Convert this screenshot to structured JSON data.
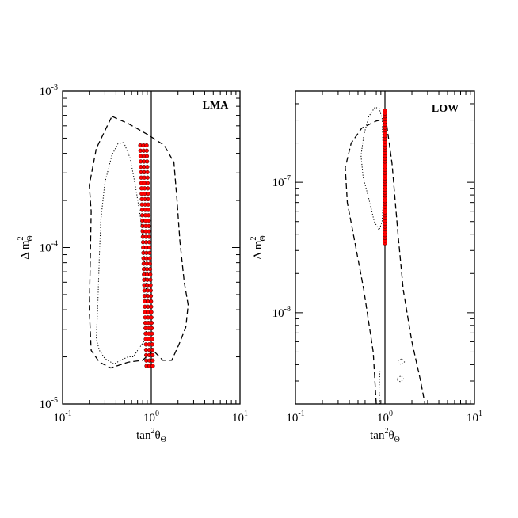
{
  "chart_data": [
    {
      "type": "scatter",
      "panel": "LMA",
      "label": "LMA",
      "xlabel": {
        "base": "tan",
        "sup": "2",
        "main": "θ",
        "sub": "Θ"
      },
      "ylabel": {
        "main": "Δ m",
        "sup": "2",
        "sub": "Θ"
      },
      "xscale": "log",
      "yscale": "log",
      "xlim": [
        0.1,
        10
      ],
      "ylim": [
        1e-05,
        0.001
      ],
      "xticks": [
        {
          "value": 0.1,
          "base": "10",
          "exp": "-1"
        },
        {
          "value": 1,
          "base": "10",
          "exp": "0"
        },
        {
          "value": 10,
          "base": "10",
          "exp": "1"
        }
      ],
      "yticks": [
        {
          "value": 1e-05,
          "base": "10",
          "exp": "-5"
        },
        {
          "value": 0.0001,
          "base": "10",
          "exp": "-4"
        },
        {
          "value": 0.001,
          "base": "10",
          "exp": "-3"
        }
      ],
      "vline": 1,
      "contours": [
        {
          "style": "dashed",
          "points": [
            [
              0.36,
              0.00069
            ],
            [
              0.55,
              0.00062
            ],
            [
              0.9,
              0.00053
            ],
            [
              1.4,
              0.00045
            ],
            [
              1.8,
              0.00035
            ],
            [
              1.95,
              0.0002
            ],
            [
              2.1,
              0.00011
            ],
            [
              2.35,
              6e-05
            ],
            [
              2.6,
              4.3e-05
            ],
            [
              2.45,
              3.1e-05
            ],
            [
              2.05,
              2.4e-05
            ],
            [
              1.7,
              1.9e-05
            ],
            [
              1.35,
              1.9e-05
            ],
            [
              1.05,
              2.2e-05
            ],
            [
              0.8,
              1.9e-05
            ],
            [
              0.55,
              1.85e-05
            ],
            [
              0.35,
              1.7e-05
            ],
            [
              0.26,
              1.85e-05
            ],
            [
              0.21,
              2.2e-05
            ],
            [
              0.2,
              4e-05
            ],
            [
              0.205,
              8e-05
            ],
            [
              0.21,
              0.00017
            ],
            [
              0.2,
              0.00025
            ],
            [
              0.24,
              0.00043
            ],
            [
              0.36,
              0.00069
            ]
          ]
        },
        {
          "style": "dotted",
          "points": [
            [
              0.49,
              0.00047
            ],
            [
              0.58,
              0.00037
            ],
            [
              0.66,
              0.00025
            ],
            [
              0.75,
              0.00016
            ],
            [
              0.82,
              0.0001
            ],
            [
              0.87,
              6e-05
            ],
            [
              0.9,
              3.6e-05
            ],
            [
              0.86,
              2.6e-05
            ],
            [
              0.7,
              2.2e-05
            ],
            [
              0.63,
              2e-05
            ],
            [
              0.55,
              2e-05
            ],
            [
              0.45,
              1.9e-05
            ],
            [
              0.38,
              1.8e-05
            ],
            [
              0.3,
              1.95e-05
            ],
            [
              0.26,
              2.2e-05
            ],
            [
              0.24,
              2.6e-05
            ],
            [
              0.25,
              4.5e-05
            ],
            [
              0.26,
              9e-05
            ],
            [
              0.27,
              0.00015
            ],
            [
              0.3,
              0.00026
            ],
            [
              0.36,
              0.00039
            ],
            [
              0.42,
              0.00046
            ],
            [
              0.49,
              0.00047
            ]
          ]
        }
      ],
      "points": {
        "x_min": 0.85,
        "x_max": 1.0,
        "y_min": 1.75e-05,
        "y_max": 0.00045,
        "count": 42,
        "color": "#ff0000"
      }
    },
    {
      "type": "scatter",
      "panel": "LOW",
      "label": "LOW",
      "xlabel": {
        "base": "tan",
        "sup": "2",
        "main": "θ",
        "sub": "Θ"
      },
      "ylabel": {
        "main": "Δ m",
        "sup": "2",
        "sub": "Θ"
      },
      "xscale": "log",
      "yscale": "log",
      "xlim": [
        0.1,
        10
      ],
      "ylim": [
        2e-09,
        5e-07
      ],
      "xticks": [
        {
          "value": 0.1,
          "base": "10",
          "exp": "-1"
        },
        {
          "value": 1,
          "base": "10",
          "exp": "0"
        },
        {
          "value": 10,
          "base": "10",
          "exp": "1"
        }
      ],
      "yticks": [
        {
          "value": 1e-08,
          "base": "10",
          "exp": "-8"
        },
        {
          "value": 1e-07,
          "base": "10",
          "exp": "-7"
        }
      ],
      "vline": 1,
      "contours": [
        {
          "style": "dashed",
          "points": [
            [
              0.8,
              2e-09
            ],
            [
              0.74,
              5e-09
            ],
            [
              0.58,
              1.5e-08
            ],
            [
              0.46,
              3.5e-08
            ],
            [
              0.38,
              7e-08
            ],
            [
              0.36,
              1.3e-07
            ],
            [
              0.42,
              2e-07
            ],
            [
              0.55,
              2.6e-07
            ],
            [
              0.8,
              2.95e-07
            ],
            [
              1.0,
              3.05e-07
            ],
            [
              1.05,
              2.7e-07
            ],
            [
              1.2,
              1.4e-07
            ],
            [
              1.4,
              4e-08
            ],
            [
              1.6,
              1.5e-08
            ],
            [
              2.0,
              6e-09
            ],
            [
              2.5,
              3e-09
            ],
            [
              2.8,
              2e-09
            ]
          ]
        },
        {
          "style": "dotted",
          "points": [
            [
              0.88,
              2e-09
            ],
            [
              0.86,
              2.6e-09
            ],
            [
              0.88,
              3.6e-09
            ]
          ]
        },
        {
          "style": "dotted",
          "points": [
            [
              0.77,
              3.75e-07
            ],
            [
              0.66,
              3.2e-07
            ],
            [
              0.58,
              2.3e-07
            ],
            [
              0.54,
              1.6e-07
            ],
            [
              0.57,
              1.1e-07
            ],
            [
              0.66,
              7.5e-08
            ],
            [
              0.76,
              5e-08
            ],
            [
              0.86,
              4.3e-08
            ],
            [
              0.93,
              5e-08
            ],
            [
              0.96,
              7.5e-08
            ],
            [
              0.96,
              1.5e-07
            ],
            [
              0.93,
              3.1e-07
            ],
            [
              0.86,
              3.7e-07
            ],
            [
              0.77,
              3.75e-07
            ]
          ]
        },
        {
          "style": "dotted",
          "points": [
            [
              1.4,
              4.3e-09
            ],
            [
              1.55,
              4.45e-09
            ],
            [
              1.65,
              4.2e-09
            ],
            [
              1.52,
              4e-09
            ],
            [
              1.4,
              4.15e-09
            ],
            [
              1.4,
              4.3e-09
            ]
          ]
        },
        {
          "style": "dotted",
          "points": [
            [
              1.38,
              3.15e-09
            ],
            [
              1.52,
              3.3e-09
            ],
            [
              1.62,
              3.1e-09
            ],
            [
              1.5,
              2.95e-09
            ],
            [
              1.38,
              3.05e-09
            ],
            [
              1.38,
              3.15e-09
            ]
          ]
        }
      ],
      "points": {
        "x_min": 1.0,
        "x_max": 1.0,
        "y_min": 3.4e-08,
        "y_max": 3.55e-07,
        "count": 48,
        "color": "#ff0000"
      }
    }
  ]
}
